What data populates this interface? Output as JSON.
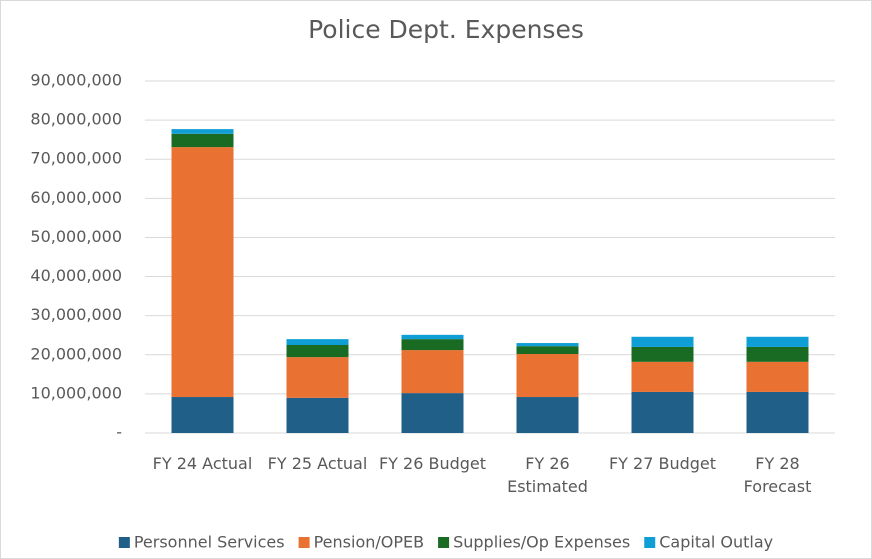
{
  "chart_data": {
    "type": "stacked_bar",
    "title": "Police Dept. Expenses",
    "categories": [
      "FY 24 Actual",
      "FY 25 Actual",
      "FY 26 Budget",
      "FY 26\nEstimated",
      "FY 27 Budget",
      "FY 28\nForecast"
    ],
    "series": [
      {
        "name": "Personnel Services",
        "color": "#1f5f88",
        "values": [
          9200000,
          9000000,
          10200000,
          9200000,
          10500000,
          10500000
        ]
      },
      {
        "name": "Pension/OPEB",
        "color": "#e97132",
        "values": [
          63900000,
          10400000,
          11000000,
          11000000,
          7700000,
          7700000
        ]
      },
      {
        "name": "Supplies/Op Expenses",
        "color": "#196b24",
        "values": [
          3400000,
          3100000,
          2800000,
          2000000,
          3800000,
          3800000
        ]
      },
      {
        "name": "Capital Outlay",
        "color": "#0f9ed5",
        "values": [
          1200000,
          1500000,
          1100000,
          800000,
          2600000,
          2600000
        ]
      }
    ],
    "ylim": [
      0,
      90000000
    ],
    "yticks": [
      {
        "value": 0,
        "label": "-"
      },
      {
        "value": 10000000,
        "label": "10,000,000"
      },
      {
        "value": 20000000,
        "label": "20,000,000"
      },
      {
        "value": 30000000,
        "label": "30,000,000"
      },
      {
        "value": 40000000,
        "label": "40,000,000"
      },
      {
        "value": 50000000,
        "label": "50,000,000"
      },
      {
        "value": 60000000,
        "label": "60,000,000"
      },
      {
        "value": 70000000,
        "label": "70,000,000"
      },
      {
        "value": 80000000,
        "label": "80,000,000"
      },
      {
        "value": 90000000,
        "label": "90,000,000"
      }
    ],
    "grid": true,
    "legend": "bottom"
  }
}
